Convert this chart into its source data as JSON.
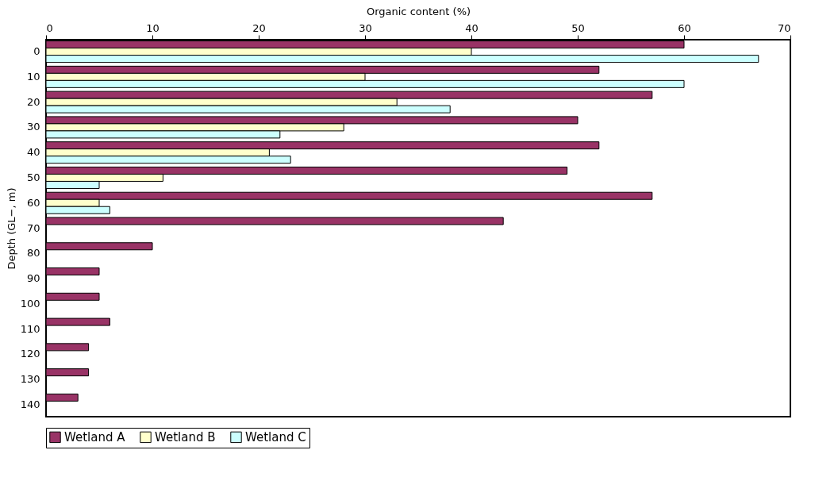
{
  "chart_data": {
    "type": "bar",
    "orientation": "horizontal",
    "xlabel": "Organic content (%)",
    "ylabel": "Depth (GL−, m)",
    "categories": [
      "0",
      "10",
      "20",
      "30",
      "40",
      "50",
      "60",
      "70",
      "80",
      "90",
      "100",
      "110",
      "120",
      "130",
      "140"
    ],
    "series": [
      {
        "name": "Wetland A",
        "color": "#993366",
        "values": [
          60,
          52,
          57,
          50,
          52,
          49,
          57,
          43,
          10,
          5,
          5,
          6,
          4,
          4,
          3
        ]
      },
      {
        "name": "Wetland B",
        "color": "#ffffcc",
        "values": [
          40,
          30,
          33,
          28,
          21,
          11,
          5,
          null,
          null,
          null,
          null,
          null,
          null,
          null,
          null
        ]
      },
      {
        "name": "Wetland C",
        "color": "#ccffff",
        "values": [
          67,
          60,
          38,
          22,
          23,
          5,
          6,
          null,
          null,
          null,
          null,
          null,
          null,
          null,
          null
        ]
      }
    ],
    "xlim": [
      0,
      70
    ],
    "xticks": [
      0,
      10,
      20,
      30,
      40,
      50,
      60,
      70
    ],
    "grid": false,
    "legend": "bottom"
  }
}
